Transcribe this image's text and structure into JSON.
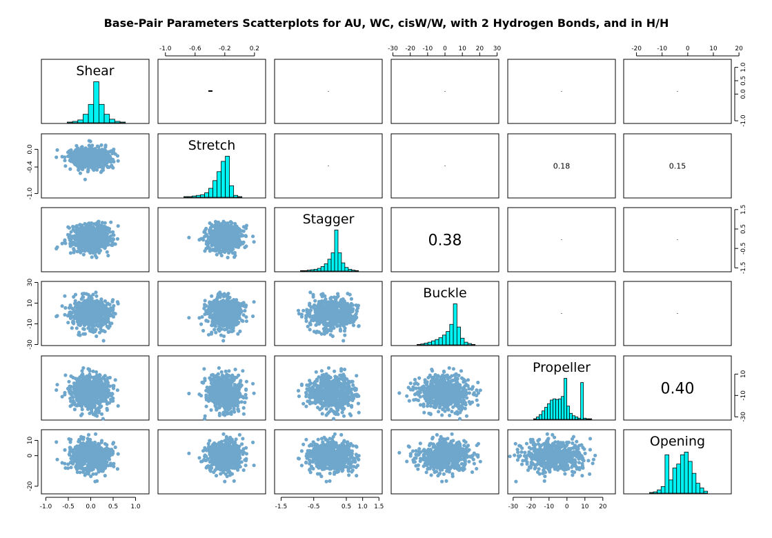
{
  "chart_data": {
    "type": "scatter",
    "title": "Base-Pair Parameters Scatterplots for AU, WC, cisW/W, with 2 Hydrogen Bonds, and in H/H",
    "variables": [
      "Shear",
      "Stretch",
      "Stagger",
      "Buckle",
      "Propeller",
      "Opening"
    ],
    "ranges": {
      "Shear": [
        -1.1,
        1.3
      ],
      "Stretch": [
        -1.1,
        0.35
      ],
      "Stagger": [
        -1.7,
        1.6
      ],
      "Buckle": [
        -31,
        31
      ],
      "Propeller": [
        -33,
        27
      ],
      "Opening": [
        -25,
        17
      ]
    },
    "axis_ticks": {
      "top": {
        "Stretch": [
          "-1.0",
          "-0.6",
          "-0.2",
          "0.2"
        ],
        "Buckle": [
          "-30",
          "-20",
          "-10",
          "0",
          "10",
          "20",
          "30"
        ],
        "Opening": [
          "-20",
          "-10",
          "0",
          "10",
          "20"
        ]
      },
      "bottom": {
        "Shear": [
          "-1.0",
          "-0.5",
          "0.0",
          "0.5",
          "1.0"
        ],
        "Stagger": [
          "-1.5",
          "-0.5",
          "0.5",
          "1.0",
          "1.5"
        ],
        "Propeller": [
          "-30",
          "-20",
          "-10",
          "0",
          "10",
          "20"
        ]
      },
      "left": {
        "Stretch": [
          "-1.0",
          "-0.4",
          "0.0"
        ],
        "Buckle": [
          "-30",
          "-10",
          "10",
          "30"
        ],
        "Opening": [
          "-20",
          "0",
          "10"
        ]
      },
      "right": {
        "Shear": [
          "-1.0",
          "0.0",
          "0.5",
          "1.0"
        ],
        "Stagger": [
          "-1.5",
          "-0.5",
          "0.5",
          "1.5"
        ],
        "Propeller": [
          "-30",
          "-10",
          "10"
        ]
      }
    },
    "correlations": [
      {
        "row": "Stretch",
        "col": "Propeller",
        "value": "0.18"
      },
      {
        "row": "Stretch",
        "col": "Opening",
        "value": "0.15"
      },
      {
        "row": "Stagger",
        "col": "Buckle",
        "value": "0.38"
      },
      {
        "row": "Propeller",
        "col": "Opening",
        "value": "0.40"
      }
    ],
    "distributions": {
      "Shear": {
        "center": 0.0,
        "sd": 0.22
      },
      "Stretch": {
        "center": -0.2,
        "sd": 0.12
      },
      "Stagger": {
        "center": 0.05,
        "sd": 0.35
      },
      "Buckle": {
        "center": 0.0,
        "sd": 7.0
      },
      "Propeller": {
        "center": -8.0,
        "sd": 8.0
      },
      "Opening": {
        "center": 0.0,
        "sd": 5.0
      }
    },
    "histograms": {
      "Shear": [
        1,
        2,
        4,
        12,
        26,
        58,
        26,
        12,
        5,
        2,
        1
      ],
      "Stretch": [
        1,
        1,
        2,
        3,
        4,
        7,
        14,
        26,
        40,
        56,
        64,
        18,
        3,
        1
      ],
      "Stagger": [
        1,
        1,
        2,
        3,
        4,
        6,
        10,
        16,
        26,
        40,
        90,
        40,
        18,
        8,
        4,
        2,
        1
      ],
      "Buckle": [
        1,
        2,
        4,
        6,
        9,
        12,
        16,
        22,
        30,
        46,
        92,
        40,
        15,
        6,
        3,
        1
      ],
      "Propeller": [
        1,
        4,
        8,
        14,
        20,
        26,
        32,
        34,
        33,
        34,
        38,
        68,
        22,
        10,
        6,
        4,
        2,
        61,
        2,
        1,
        1
      ],
      "Opening": [
        1,
        2,
        5,
        10,
        58,
        20,
        38,
        44,
        58,
        62,
        48,
        30,
        15,
        8,
        3
      ]
    },
    "point_color": "#6fa7cc",
    "bar_color": "#00f2f2",
    "grid": false
  }
}
